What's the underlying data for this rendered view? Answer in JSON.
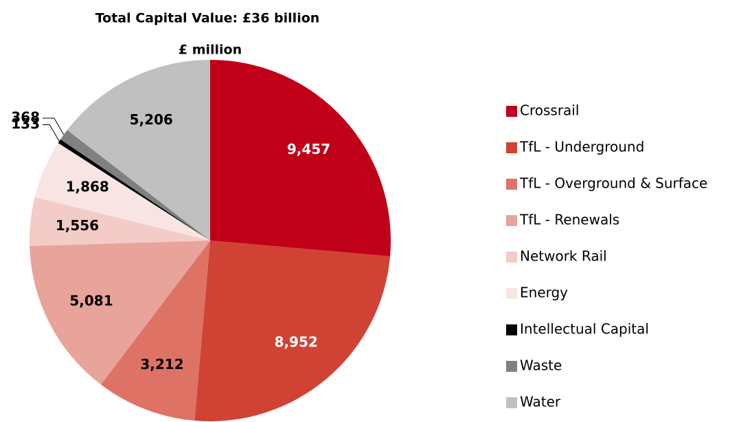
{
  "chart_data": {
    "type": "pie",
    "title": "Total Capital Value: £36 billion",
    "subtitle": "£ million",
    "categories": [
      "Crossrail",
      "TfL - Underground",
      "TfL - Overground & Surface",
      "TfL - Renewals",
      "Network Rail",
      "Energy",
      "Intellectual Capital",
      "Waste",
      "Water"
    ],
    "values": [
      9457,
      8952,
      3212,
      5081,
      1556,
      1868,
      133,
      368,
      5206
    ],
    "value_labels": [
      "9,457",
      "8,952",
      "3,212",
      "5,081",
      "1,556",
      "1,868",
      "133",
      "368",
      "5,206"
    ],
    "colors": [
      "#c00018",
      "#d04334",
      "#de7365",
      "#e8a39b",
      "#f3cbc7",
      "#f9e4e4",
      "#000000",
      "#808080",
      "#c0c0c0"
    ],
    "legend": "right"
  }
}
